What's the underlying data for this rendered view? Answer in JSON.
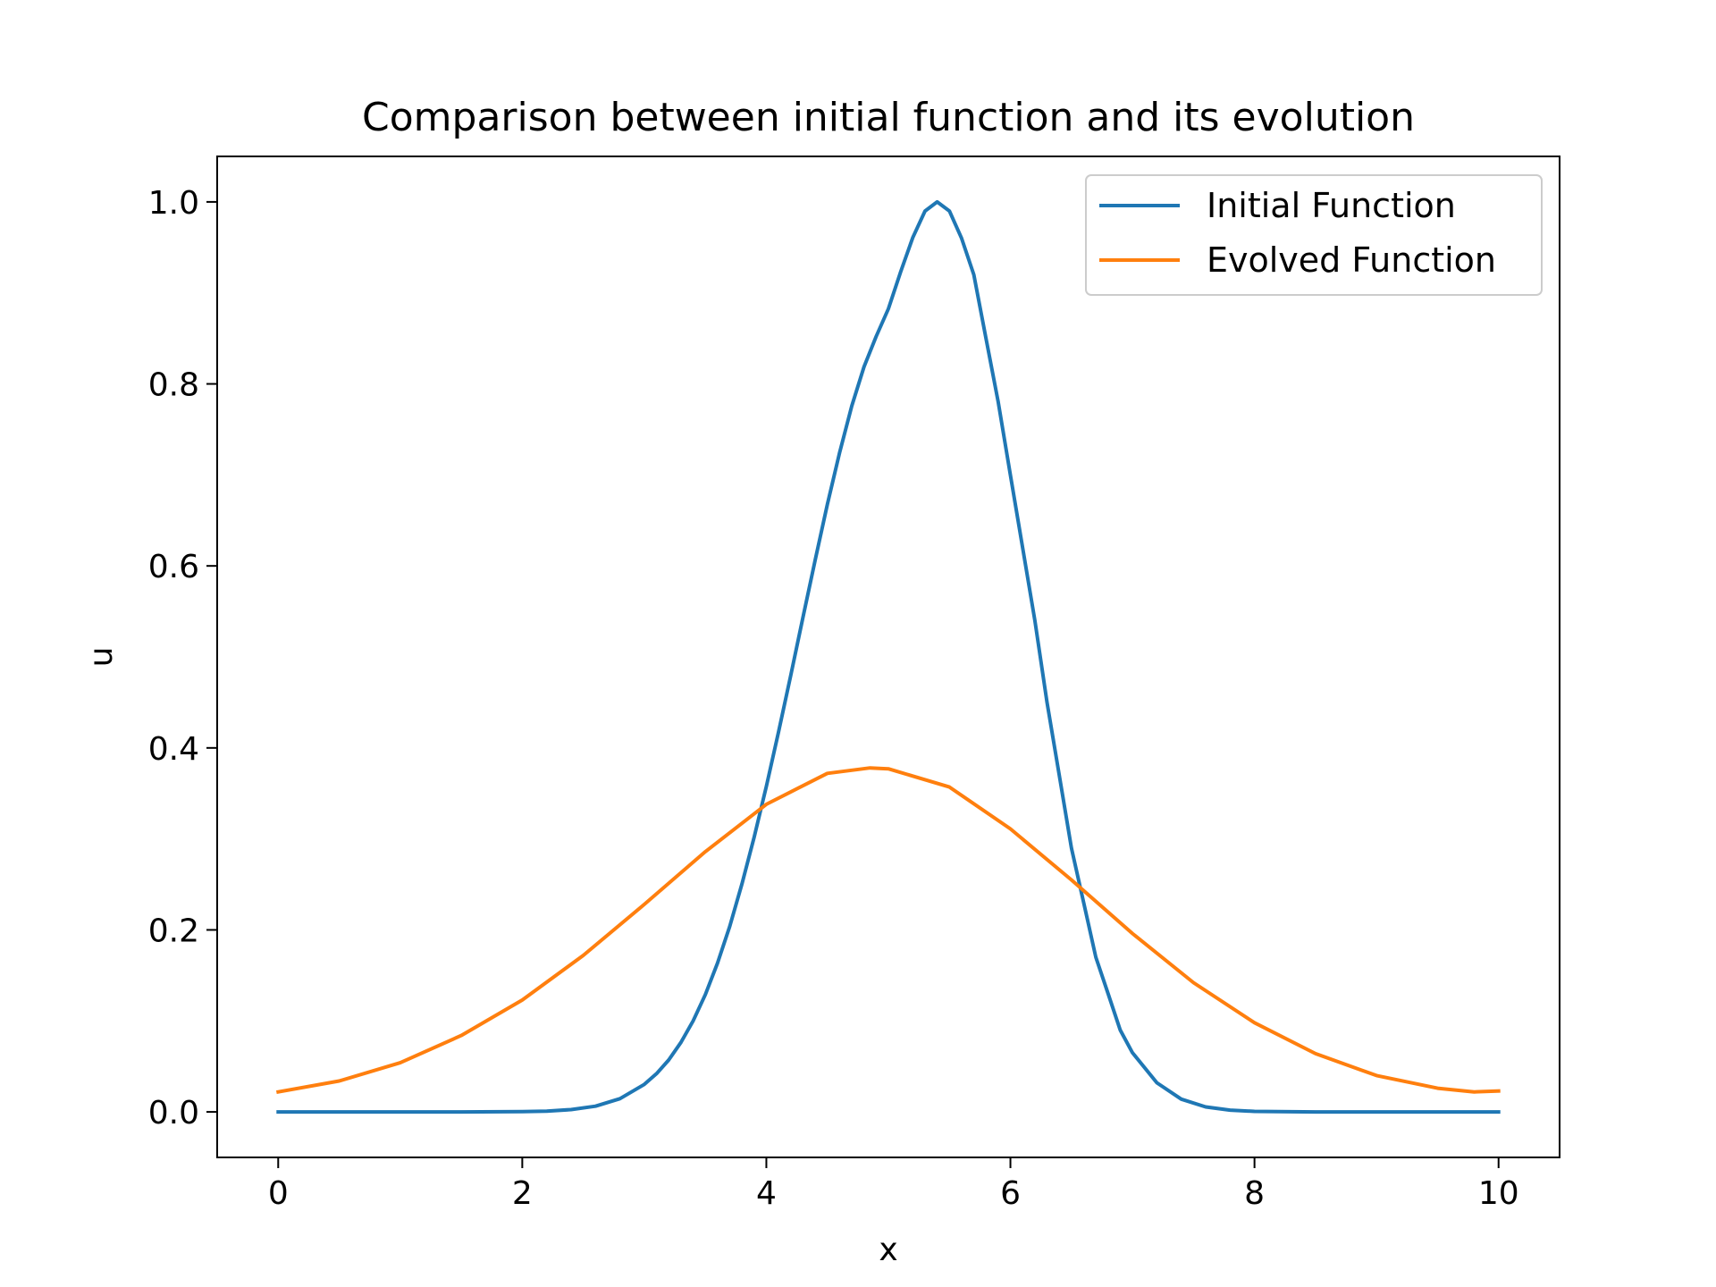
{
  "chart_data": {
    "type": "line",
    "title": "Comparison between initial function and its evolution",
    "xlabel": "x",
    "ylabel": "u",
    "xlim": [
      -0.5,
      10.5
    ],
    "ylim": [
      -0.05,
      1.05
    ],
    "xticks": [
      0,
      2,
      4,
      6,
      8,
      10
    ],
    "xtick_labels": [
      "0",
      "2",
      "4",
      "6",
      "8",
      "10"
    ],
    "yticks": [
      0.0,
      0.2,
      0.4,
      0.6,
      0.8,
      1.0
    ],
    "ytick_labels": [
      "0.0",
      "0.2",
      "0.4",
      "0.6",
      "0.8",
      "1.0"
    ],
    "grid": false,
    "legend_position": "top-right",
    "series": [
      {
        "name": "Initial Function",
        "color": "#1f77b4",
        "x": [
          0,
          0.5,
          1,
          1.5,
          2,
          2.2,
          2.4,
          2.6,
          2.8,
          3,
          3.1,
          3.2,
          3.3,
          3.4,
          3.5,
          3.6,
          3.7,
          3.8,
          3.9,
          4,
          4.1,
          4.2,
          4.3,
          4.4,
          4.5,
          4.6,
          4.7,
          4.8,
          4.9,
          5,
          5.1,
          5.2,
          5.3,
          5.4,
          5.5,
          5.6,
          5.7,
          5.8,
          5.9,
          6,
          6.1,
          6.2,
          6.3,
          6.4,
          6.5,
          6.6,
          6.7,
          6.8,
          6.9,
          7,
          7.2,
          7.4,
          7.6,
          7.8,
          8,
          8.5,
          9,
          9.5,
          10
        ],
        "y": [
          0.0,
          0.0,
          0.0,
          0.0,
          0.0003,
          0.0009,
          0.0025,
          0.0063,
          0.0145,
          0.0302,
          0.042,
          0.0571,
          0.0764,
          0.1,
          0.1289,
          0.1635,
          0.2039,
          0.2503,
          0.3019,
          0.3579,
          0.4176,
          0.4799,
          0.5434,
          0.6065,
          0.6676,
          0.7244,
          0.7756,
          0.8187,
          0.8521,
          0.8825,
          0.9231,
          0.9608,
          0.99,
          1.0,
          0.99,
          0.96,
          0.92,
          0.85,
          0.78,
          0.7,
          0.62,
          0.54,
          0.45,
          0.37,
          0.29,
          0.23,
          0.17,
          0.13,
          0.09,
          0.065,
          0.032,
          0.014,
          0.0055,
          0.002,
          0.0006,
          0.0,
          0.0,
          0.0,
          0.0
        ]
      },
      {
        "name": "Evolved Function",
        "color": "#ff7f0e",
        "x": [
          0,
          0.5,
          1,
          1.5,
          2,
          2.5,
          3,
          3.5,
          4,
          4.5,
          4.85,
          5,
          5.5,
          6,
          6.5,
          7,
          7.5,
          8,
          8.5,
          9,
          9.5,
          9.8,
          10
        ],
        "y": [
          0.022,
          0.034,
          0.054,
          0.084,
          0.123,
          0.172,
          0.228,
          0.286,
          0.338,
          0.372,
          0.378,
          0.377,
          0.357,
          0.311,
          0.255,
          0.196,
          0.142,
          0.098,
          0.064,
          0.04,
          0.026,
          0.022,
          0.023
        ]
      }
    ]
  }
}
